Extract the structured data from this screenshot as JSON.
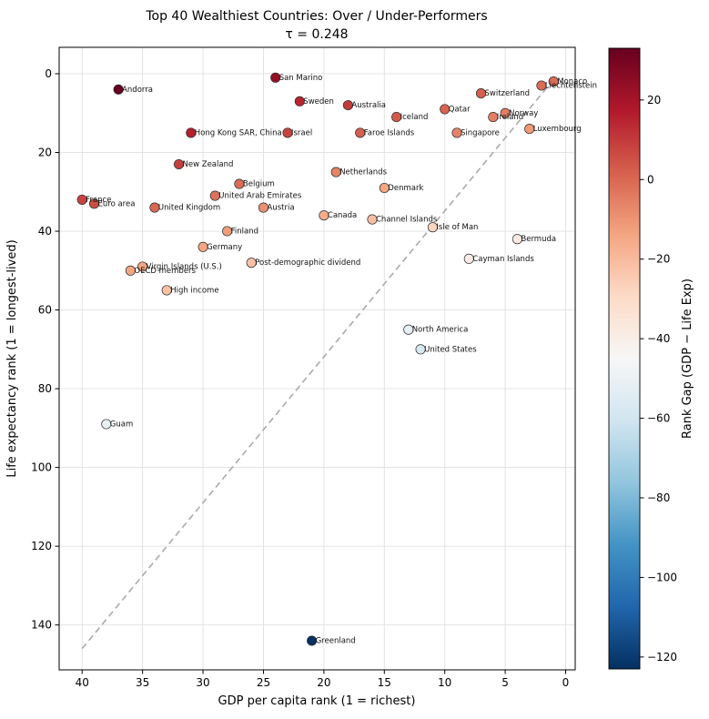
{
  "chart_data": {
    "type": "scatter",
    "title": "Top 40 Wealthiest Countries: Over / Under-Performers",
    "subtitle": "τ = 0.248",
    "xlabel": "GDP per capita rank (1 = richest)",
    "ylabel": "Life expectancy rank (1 = longest-lived)",
    "xlim": [
      41.9,
      -0.79
    ],
    "ylim": [
      -6.7,
      151.4
    ],
    "x_ticks": [
      40,
      35,
      30,
      25,
      20,
      15,
      10,
      5,
      0
    ],
    "y_ticks": [
      0,
      20,
      40,
      60,
      80,
      100,
      120,
      140
    ],
    "x_inverted": true,
    "y_inverted": true,
    "grid": true,
    "identity_line": {
      "style": "dashed",
      "x": [
        40,
        1
      ],
      "y": [
        146,
        1.5
      ]
    },
    "colorbar": {
      "label": "Rank Gap (GDP − Life Exp)",
      "vmin": -123,
      "vmax": 33,
      "ticks": [
        20,
        0,
        -20,
        -40,
        -60,
        -80,
        -100,
        -120
      ],
      "cmap": "RdBu_r"
    },
    "points": [
      {
        "label": "Monaco",
        "x": 1,
        "y": 2,
        "gap": -1
      },
      {
        "label": "Liechtenstein",
        "x": 2,
        "y": 3,
        "gap": -1
      },
      {
        "label": "Luxembourg",
        "x": 3,
        "y": 14,
        "gap": -11
      },
      {
        "label": "Bermuda",
        "x": 4,
        "y": 42,
        "gap": -38
      },
      {
        "label": "Norway",
        "x": 5,
        "y": 10,
        "gap": -5
      },
      {
        "label": "Ireland",
        "x": 6,
        "y": 11,
        "gap": -5
      },
      {
        "label": "Switzerland",
        "x": 7,
        "y": 5,
        "gap": 2
      },
      {
        "label": "Cayman Islands",
        "x": 8,
        "y": 47,
        "gap": -39
      },
      {
        "label": "Singapore",
        "x": 9,
        "y": 15,
        "gap": -6
      },
      {
        "label": "Qatar",
        "x": 10,
        "y": 9,
        "gap": 1
      },
      {
        "label": "Isle of Man",
        "x": 11,
        "y": 39,
        "gap": -28
      },
      {
        "label": "United States",
        "x": 12,
        "y": 70,
        "gap": -58
      },
      {
        "label": "North America",
        "x": 13,
        "y": 65,
        "gap": -52
      },
      {
        "label": "Iceland",
        "x": 14,
        "y": 11,
        "gap": 3
      },
      {
        "label": "Denmark",
        "x": 15,
        "y": 29,
        "gap": -14
      },
      {
        "label": "Channel Islands",
        "x": 16,
        "y": 37,
        "gap": -21
      },
      {
        "label": "Faroe Islands",
        "x": 17,
        "y": 15,
        "gap": 2
      },
      {
        "label": "Australia",
        "x": 18,
        "y": 8,
        "gap": 10
      },
      {
        "label": "Netherlands",
        "x": 19,
        "y": 25,
        "gap": -6
      },
      {
        "label": "Canada",
        "x": 20,
        "y": 36,
        "gap": -16
      },
      {
        "label": "Greenland",
        "x": 21,
        "y": 144,
        "gap": -123
      },
      {
        "label": "Sweden",
        "x": 22,
        "y": 7,
        "gap": 15
      },
      {
        "label": "Israel",
        "x": 23,
        "y": 15,
        "gap": 8
      },
      {
        "label": "San Marino",
        "x": 24,
        "y": 1,
        "gap": 23
      },
      {
        "label": "Austria",
        "x": 25,
        "y": 34,
        "gap": -9
      },
      {
        "label": "Post-demographic dividend",
        "x": 26,
        "y": 48,
        "gap": -22
      },
      {
        "label": "Belgium",
        "x": 27,
        "y": 28,
        "gap": -1
      },
      {
        "label": "Finland",
        "x": 28,
        "y": 40,
        "gap": -12
      },
      {
        "label": "United Arab Emirates",
        "x": 29,
        "y": 31,
        "gap": -2
      },
      {
        "label": "Germany",
        "x": 30,
        "y": 44,
        "gap": -14
      },
      {
        "label": "Hong Kong SAR, China",
        "x": 31,
        "y": 15,
        "gap": 16
      },
      {
        "label": "New Zealand",
        "x": 32,
        "y": 23,
        "gap": 9
      },
      {
        "label": "High income",
        "x": 33,
        "y": 55,
        "gap": -22
      },
      {
        "label": "United Kingdom",
        "x": 34,
        "y": 34,
        "gap": 0
      },
      {
        "label": "Virgin Islands (U.S.)",
        "x": 35,
        "y": 49,
        "gap": -14
      },
      {
        "label": "OECD members",
        "x": 36,
        "y": 50,
        "gap": -14
      },
      {
        "label": "Andorra",
        "x": 37,
        "y": 4,
        "gap": 33
      },
      {
        "label": "Guam",
        "x": 38,
        "y": 89,
        "gap": -51
      },
      {
        "label": "Euro area",
        "x": 39,
        "y": 33,
        "gap": 6
      },
      {
        "label": "France",
        "x": 40,
        "y": 32,
        "gap": 8
      }
    ]
  },
  "colors": {
    "background": "#ffffff",
    "grid": "#e0e0e0",
    "spine": "#000000",
    "tick_text": "#000000",
    "annotation_text": "#111111",
    "diagonal": "#aaaaaa",
    "marker_edge": "#2e2e2e",
    "cmap_stops": [
      "#053061",
      "#2166ac",
      "#4393c5",
      "#92c5de",
      "#d1e5f0",
      "#f7f7f7",
      "#fddbc7",
      "#f4a582",
      "#d6604d",
      "#b2182b",
      "#67001f"
    ]
  }
}
